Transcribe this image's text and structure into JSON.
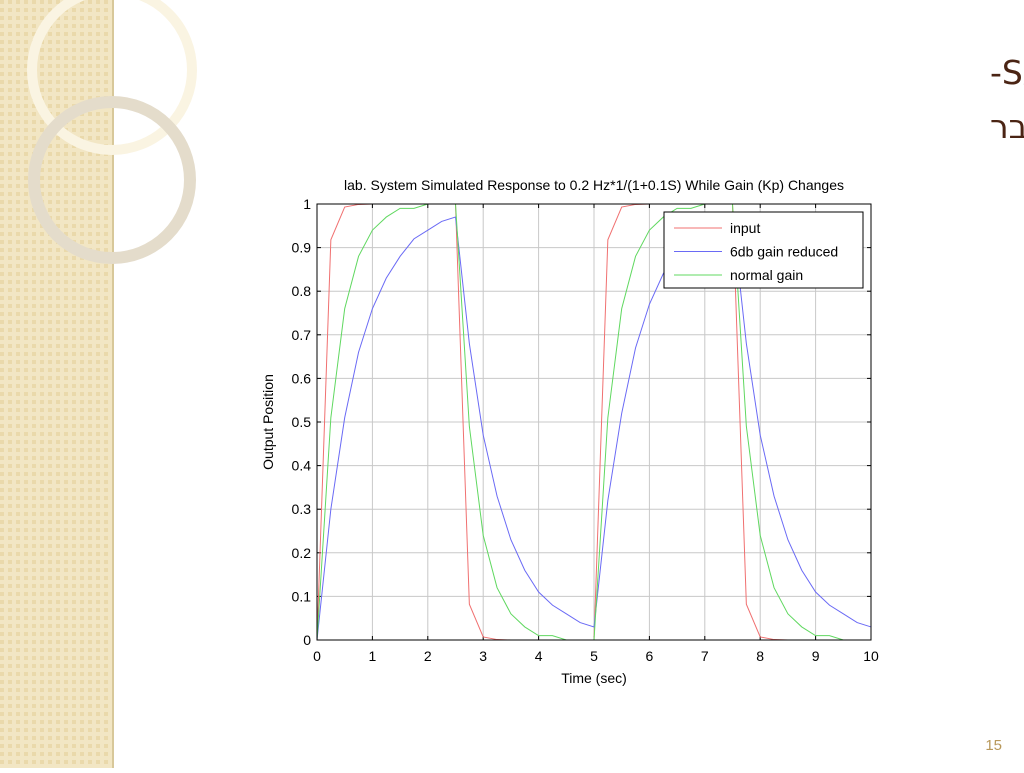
{
  "slide": {
    "title_lines": [
      "תגובת מערכת בסימולציה –ללא בקר SAC-",
      "לאותה הכניסה כאשר משנים את ההגבר"
    ],
    "page_number": "15"
  },
  "chart_data": {
    "type": "line",
    "title": "lab. System Simulated Response to 0.2 Hz*1/(1+0.1S) While Gain (Kp) Changes",
    "x_label": "Time (sec)",
    "y_label": "Output Position",
    "x": [
      0,
      0.25,
      0.5,
      0.75,
      1,
      1.25,
      1.5,
      1.75,
      2,
      2.25,
      2.5,
      2.75,
      3,
      3.25,
      3.5,
      3.75,
      4,
      4.25,
      4.5,
      4.75,
      5,
      5.25,
      5.5,
      5.75,
      6,
      6.25,
      6.5,
      6.75,
      7,
      7.25,
      7.5,
      7.75,
      8,
      8.25,
      8.5,
      8.75,
      9,
      9.25,
      9.5,
      9.75,
      10
    ],
    "series": [
      {
        "name": "input",
        "color": "#f07070",
        "values": [
          0,
          0.918,
          0.993,
          0.999,
          1,
          1,
          1,
          1,
          1,
          1,
          1,
          0.082,
          0.007,
          0.001,
          0,
          0,
          0,
          0,
          0,
          0,
          0,
          0.918,
          0.993,
          0.999,
          1,
          1,
          1,
          1,
          1,
          1,
          1,
          0.082,
          0.007,
          0.001,
          0,
          0,
          0,
          0,
          0,
          0,
          0
        ]
      },
      {
        "name": "6db gain reduced",
        "color": "#6a6af5",
        "values": [
          0,
          0.3,
          0.51,
          0.66,
          0.76,
          0.83,
          0.88,
          0.92,
          0.94,
          0.96,
          0.97,
          0.68,
          0.47,
          0.33,
          0.23,
          0.16,
          0.11,
          0.08,
          0.06,
          0.04,
          0.03,
          0.32,
          0.52,
          0.67,
          0.77,
          0.84,
          0.89,
          0.92,
          0.95,
          0.96,
          0.97,
          0.68,
          0.47,
          0.33,
          0.23,
          0.16,
          0.11,
          0.08,
          0.06,
          0.04,
          0.03
        ]
      },
      {
        "name": "normal gain",
        "color": "#60d860",
        "values": [
          0,
          0.51,
          0.76,
          0.88,
          0.94,
          0.97,
          0.99,
          0.99,
          1,
          1,
          1,
          0.49,
          0.24,
          0.12,
          0.06,
          0.03,
          0.01,
          0.01,
          0,
          0,
          0,
          0.51,
          0.76,
          0.88,
          0.94,
          0.97,
          0.99,
          0.99,
          1,
          1,
          1,
          0.49,
          0.24,
          0.12,
          0.06,
          0.03,
          0.01,
          0.01,
          0,
          0,
          0
        ]
      }
    ],
    "xlim": [
      0,
      10
    ],
    "xticks": [
      0,
      1,
      2,
      3,
      4,
      5,
      6,
      7,
      8,
      9,
      10
    ],
    "ylim": [
      0,
      1
    ],
    "yticks": [
      0,
      0.1,
      0.2,
      0.3,
      0.4,
      0.5,
      0.6,
      0.7,
      0.8,
      0.9,
      1
    ],
    "grid": true,
    "legend": "upper right"
  }
}
